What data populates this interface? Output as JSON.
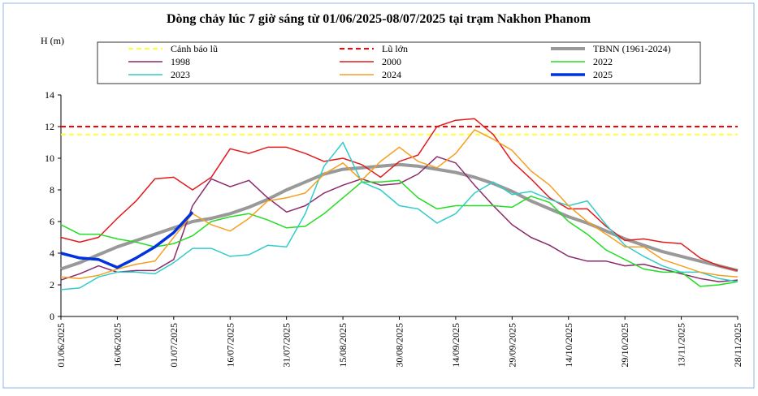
{
  "chart_data": {
    "type": "line",
    "title": "Dòng chảy lúc 7 giờ sáng từ 01/06/2025-08/07/2025 tại trạm Nakhon Phanom",
    "y_label": "H (m)",
    "x": [
      "01/06/2025",
      "06/06/2025",
      "11/06/2025",
      "16/06/2025",
      "21/06/2025",
      "26/06/2025",
      "01/07/2025",
      "06/07/2025",
      "11/07/2025",
      "16/07/2025",
      "21/07/2025",
      "26/07/2025",
      "31/07/2025",
      "05/08/2025",
      "10/08/2025",
      "15/08/2025",
      "20/08/2025",
      "25/08/2025",
      "30/08/2025",
      "04/09/2025",
      "09/09/2025",
      "14/09/2025",
      "19/09/2025",
      "24/09/2025",
      "29/09/2025",
      "04/10/2025",
      "09/10/2025",
      "14/10/2025",
      "19/10/2025",
      "24/10/2025",
      "29/10/2025",
      "03/11/2025",
      "08/11/2025",
      "13/11/2025",
      "18/11/2025",
      "23/11/2025",
      "28/11/2025"
    ],
    "xticks": [
      "01/06/2025",
      "16/06/2025",
      "01/07/2025",
      "16/07/2025",
      "31/07/2025",
      "15/08/2025",
      "30/08/2025",
      "14/09/2025",
      "29/09/2025",
      "14/10/2025",
      "29/10/2025",
      "13/11/2025",
      "28/11/2025"
    ],
    "ylim": [
      0,
      14
    ],
    "yticks": [
      0,
      2,
      4,
      6,
      8,
      10,
      12,
      14
    ],
    "hlines": [
      {
        "name": "Cảnh báo lũ",
        "color": "#ffff33",
        "value": 11.5
      },
      {
        "name": "Lũ lớn",
        "color": "#ff0000",
        "value": 12
      }
    ],
    "series": [
      {
        "name": "TBNN (1961-2024)",
        "color": "#999999",
        "width": 4,
        "values": [
          3.0,
          3.4,
          3.9,
          4.4,
          4.8,
          5.2,
          5.6,
          6.0,
          6.2,
          6.5,
          6.9,
          7.4,
          8.0,
          8.5,
          9.0,
          9.3,
          9.4,
          9.5,
          9.6,
          9.5,
          9.3,
          9.1,
          8.8,
          8.4,
          7.9,
          7.3,
          6.8,
          6.3,
          5.9,
          5.4,
          4.9,
          4.5,
          4.1,
          3.8,
          3.5,
          3.2,
          2.9
        ]
      },
      {
        "name": "1998",
        "color": "#8b2a6b",
        "width": 1.5,
        "values": [
          2.3,
          2.7,
          3.2,
          2.8,
          2.9,
          2.9,
          3.6,
          7.0,
          8.7,
          8.2,
          8.6,
          7.5,
          6.6,
          7.0,
          7.8,
          8.3,
          8.7,
          8.3,
          8.4,
          9.0,
          10.1,
          9.7,
          8.3,
          7.0,
          5.8,
          5.0,
          4.5,
          3.8,
          3.5,
          3.5,
          3.2,
          3.3,
          3.0,
          2.7,
          2.4,
          2.2,
          2.3
        ]
      },
      {
        "name": "2000",
        "color": "#e31a1c",
        "width": 1.5,
        "values": [
          5.0,
          4.7,
          5.0,
          6.2,
          7.3,
          8.7,
          8.8,
          8.0,
          8.8,
          10.6,
          10.3,
          10.7,
          10.7,
          10.3,
          9.8,
          10.0,
          9.6,
          8.8,
          9.8,
          10.2,
          12.0,
          12.4,
          12.5,
          11.5,
          9.8,
          8.7,
          7.5,
          6.8,
          6.8,
          5.7,
          4.8,
          4.9,
          4.7,
          4.6,
          3.7,
          3.2,
          2.9
        ]
      },
      {
        "name": "2022",
        "color": "#22dd22",
        "width": 1.5,
        "values": [
          5.8,
          5.2,
          5.2,
          4.9,
          4.7,
          4.4,
          4.6,
          5.1,
          6.0,
          6.3,
          6.5,
          6.1,
          5.6,
          5.7,
          6.5,
          7.5,
          8.5,
          8.5,
          8.6,
          7.5,
          6.8,
          7.0,
          7.0,
          7.0,
          6.9,
          7.6,
          7.2,
          6.0,
          5.2,
          4.2,
          3.6,
          3.0,
          2.8,
          2.8,
          1.9,
          2.0,
          2.2
        ]
      },
      {
        "name": "2023",
        "color": "#33cccc",
        "width": 1.5,
        "values": [
          1.7,
          1.8,
          2.5,
          2.8,
          2.8,
          2.7,
          3.4,
          4.3,
          4.3,
          3.8,
          3.9,
          4.5,
          4.4,
          6.5,
          9.5,
          11.0,
          8.5,
          8.0,
          7.0,
          6.8,
          5.9,
          6.5,
          7.8,
          8.5,
          7.7,
          7.9,
          7.4,
          7.0,
          7.3,
          5.8,
          4.5,
          3.8,
          3.2,
          2.8,
          2.8,
          2.4,
          2.2
        ]
      },
      {
        "name": "2024",
        "color": "#f5a020",
        "width": 1.5,
        "values": [
          2.5,
          2.4,
          2.6,
          3.0,
          3.3,
          3.5,
          5.0,
          6.5,
          5.8,
          5.4,
          6.2,
          7.3,
          7.5,
          7.8,
          9.0,
          9.7,
          8.6,
          9.8,
          10.7,
          9.8,
          9.4,
          10.3,
          11.8,
          11.2,
          10.5,
          9.2,
          8.3,
          7.0,
          6.0,
          5.2,
          4.4,
          4.4,
          3.6,
          3.2,
          2.8,
          2.6,
          2.5
        ]
      },
      {
        "name": "2025",
        "color": "#0033dd",
        "width": 3.5,
        "values": [
          4.0,
          3.7,
          3.6,
          3.1,
          3.7,
          4.4,
          5.3,
          6.6,
          null,
          null,
          null,
          null,
          null,
          null,
          null,
          null,
          null,
          null,
          null,
          null,
          null,
          null,
          null,
          null,
          null,
          null,
          null,
          null,
          null,
          null,
          null,
          null,
          null,
          null,
          null,
          null,
          null
        ]
      }
    ]
  }
}
